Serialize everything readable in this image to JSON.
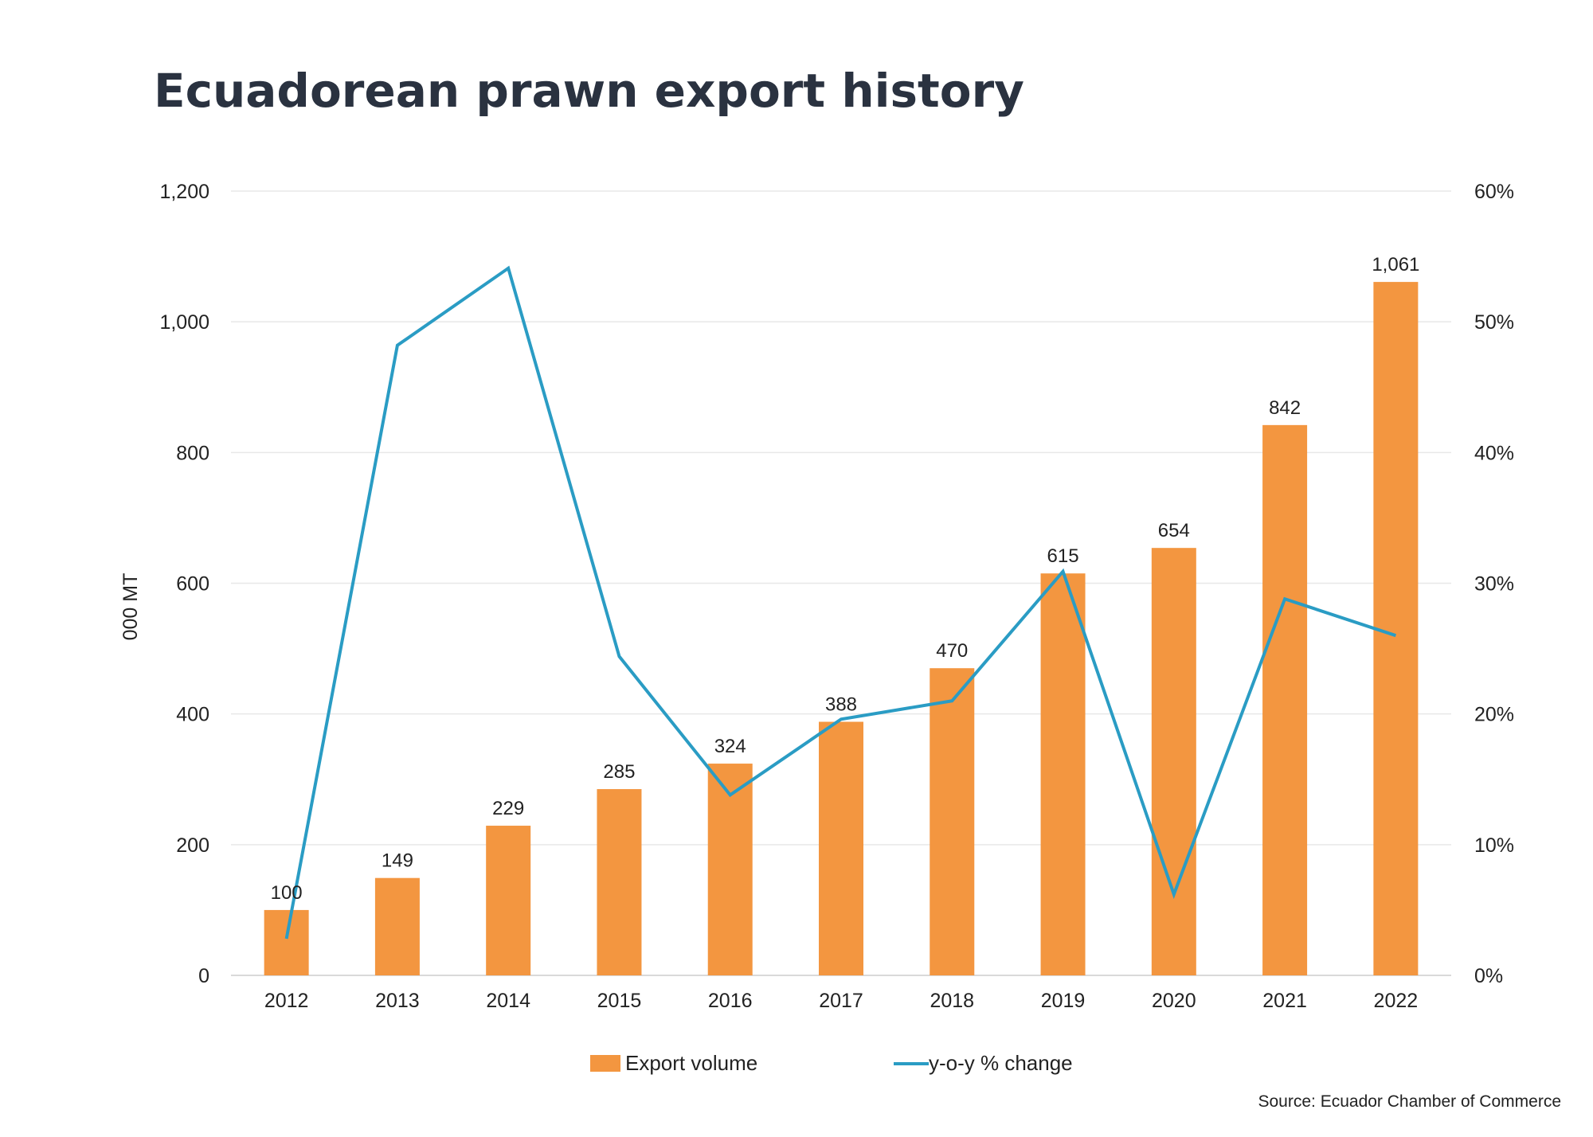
{
  "chart_data": {
    "type": "bar",
    "title": "Ecuadorean prawn export history",
    "ylabel": "000 MT",
    "y2label": "",
    "categories": [
      "2012",
      "2013",
      "2014",
      "2015",
      "2016",
      "2017",
      "2018",
      "2019",
      "2020",
      "2021",
      "2022"
    ],
    "series": [
      {
        "name": "Export volume",
        "type": "bar",
        "axis": "left",
        "color": "#F39640",
        "values": [
          100,
          149,
          229,
          285,
          324,
          388,
          470,
          615,
          654,
          842,
          1061
        ],
        "labels": [
          "100",
          "149",
          "229",
          "285",
          "324",
          "388",
          "470",
          "615",
          "654",
          "842",
          "1,061"
        ]
      },
      {
        "name": "y-o-y % change",
        "type": "line",
        "axis": "right",
        "color": "#2A9CC4",
        "values": [
          2.8,
          48.2,
          54.1,
          24.4,
          13.8,
          19.6,
          21.0,
          30.9,
          6.2,
          28.8,
          26.0
        ]
      }
    ],
    "ylim": [
      0,
      1200
    ],
    "yticks": [
      0,
      200,
      400,
      600,
      800,
      1000,
      1200
    ],
    "ytick_labels": [
      "0",
      "200",
      "400",
      "600",
      "800",
      "1,000",
      "1,200"
    ],
    "y2lim": [
      0,
      60
    ],
    "y2ticks": [
      0,
      10,
      20,
      30,
      40,
      50,
      60
    ],
    "y2tick_labels": [
      "0%",
      "10%",
      "20%",
      "30%",
      "40%",
      "50%",
      "60%"
    ],
    "grid": true,
    "legend": "bottom",
    "source": "Source: Ecuador Chamber of Commerce"
  }
}
